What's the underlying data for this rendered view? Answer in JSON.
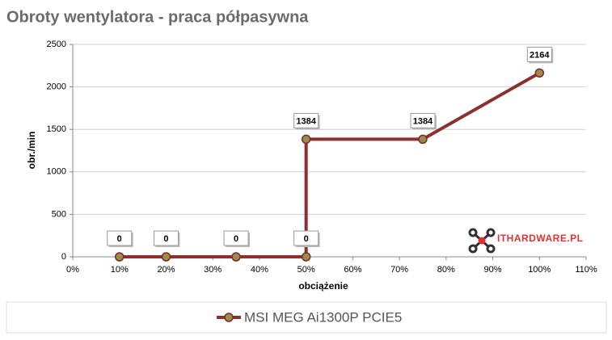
{
  "chart_data": {
    "type": "line",
    "title": "Obroty wentylatora - praca półpasywna",
    "x_label": "obciążenie",
    "y_label": "obr./min",
    "watermark": "ITHARDWARE.PL",
    "x": [
      10,
      20,
      35,
      50,
      50,
      75,
      100
    ],
    "series": [
      {
        "name": "MSI MEG Ai1300P PCIE5",
        "color": "#8b2f2f",
        "values": [
          0,
          0,
          0,
          0,
          1384,
          1384,
          2164
        ]
      }
    ],
    "xlim": [
      0,
      110
    ],
    "xticks": [
      {
        "value": 0,
        "label": "0%"
      },
      {
        "value": 10,
        "label": "10%"
      },
      {
        "value": 20,
        "label": "20%"
      },
      {
        "value": 30,
        "label": "30%"
      },
      {
        "value": 40,
        "label": "40%"
      },
      {
        "value": 50,
        "label": "50%"
      },
      {
        "value": 60,
        "label": "60%"
      },
      {
        "value": 70,
        "label": "70%"
      },
      {
        "value": 80,
        "label": "80%"
      },
      {
        "value": 90,
        "label": "90%"
      },
      {
        "value": 100,
        "label": "100%"
      },
      {
        "value": 110,
        "label": "110%"
      }
    ],
    "ylim": [
      0,
      2500
    ],
    "yticks": [
      0,
      500,
      1000,
      1500,
      2000,
      2500
    ],
    "grid": true,
    "legend": "bottom"
  }
}
